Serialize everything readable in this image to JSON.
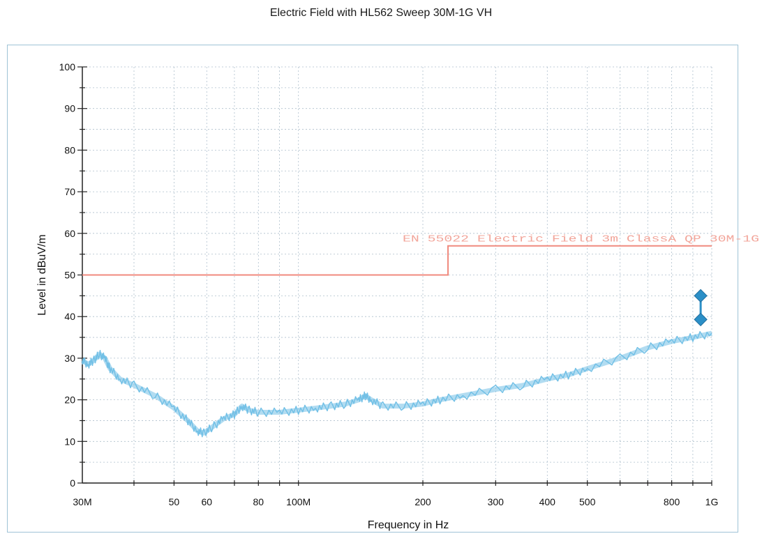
{
  "chart_data": {
    "type": "line",
    "title": "Electric Field with HL562 Sweep 30M-1G VH",
    "xlabel": "Frequency in Hz",
    "ylabel": "Level in dBuV/m",
    "x_scale": "log",
    "xlim": [
      30000000,
      1000000000
    ],
    "ylim": [
      0,
      100
    ],
    "grid": true,
    "x_ticks": [
      {
        "value": 30000000,
        "label": "30M"
      },
      {
        "value": 50000000,
        "label": "50"
      },
      {
        "value": 60000000,
        "label": "60"
      },
      {
        "value": 80000000,
        "label": "80"
      },
      {
        "value": 100000000,
        "label": "100M"
      },
      {
        "value": 200000000,
        "label": "200"
      },
      {
        "value": 300000000,
        "label": "300"
      },
      {
        "value": 400000000,
        "label": "400"
      },
      {
        "value": 500000000,
        "label": "500"
      },
      {
        "value": 800000000,
        "label": "800"
      },
      {
        "value": 1000000000,
        "label": "1G"
      }
    ],
    "y_ticks": [
      {
        "value": 0,
        "label": "0"
      },
      {
        "value": 10,
        "label": "10"
      },
      {
        "value": 20,
        "label": "20"
      },
      {
        "value": 30,
        "label": "30"
      },
      {
        "value": 40,
        "label": "40"
      },
      {
        "value": 50,
        "label": "50"
      },
      {
        "value": 60,
        "label": "60"
      },
      {
        "value": 70,
        "label": "70"
      },
      {
        "value": 80,
        "label": "80"
      },
      {
        "value": 90,
        "label": "90"
      },
      {
        "value": 100,
        "label": "100"
      }
    ],
    "series": [
      {
        "name": "EN 55022 Electric Field 3m ClassA QP 30M-1G",
        "kind": "limit",
        "color": "#f08a7e",
        "points": [
          [
            30000000,
            50
          ],
          [
            230000000,
            50
          ],
          [
            230000000,
            57
          ],
          [
            1000000000,
            57
          ]
        ]
      },
      {
        "kind": "measurement",
        "color": "#72c0e6",
        "points": [
          [
            30000000,
            29.5
          ],
          [
            31000000,
            28.5
          ],
          [
            32000000,
            29.5
          ],
          [
            33000000,
            31.0
          ],
          [
            34000000,
            30.0
          ],
          [
            35000000,
            27.5
          ],
          [
            37000000,
            25.0
          ],
          [
            40000000,
            23.5
          ],
          [
            45000000,
            21.0
          ],
          [
            50000000,
            18.0
          ],
          [
            54000000,
            15.0
          ],
          [
            57000000,
            12.5
          ],
          [
            59000000,
            12.0
          ],
          [
            62000000,
            13.5
          ],
          [
            66000000,
            15.5
          ],
          [
            70000000,
            16.5
          ],
          [
            73000000,
            18.5
          ],
          [
            76000000,
            17.5
          ],
          [
            80000000,
            17.0
          ],
          [
            90000000,
            17.0
          ],
          [
            100000000,
            17.5
          ],
          [
            110000000,
            18.0
          ],
          [
            120000000,
            18.5
          ],
          [
            130000000,
            19.0
          ],
          [
            140000000,
            20.0
          ],
          [
            145000000,
            21.0
          ],
          [
            150000000,
            20.0
          ],
          [
            160000000,
            18.5
          ],
          [
            180000000,
            18.5
          ],
          [
            200000000,
            19.0
          ],
          [
            220000000,
            20.0
          ],
          [
            250000000,
            21.0
          ],
          [
            300000000,
            22.5
          ],
          [
            350000000,
            23.5
          ],
          [
            400000000,
            25.0
          ],
          [
            450000000,
            26.0
          ],
          [
            500000000,
            27.5
          ],
          [
            600000000,
            30.0
          ],
          [
            700000000,
            32.5
          ],
          [
            800000000,
            34.0
          ],
          [
            900000000,
            35.0
          ],
          [
            1000000000,
            36.0
          ]
        ]
      }
    ],
    "markers": [
      {
        "frequency": 940000000,
        "level": 45.0,
        "color": "#2b8fc7"
      },
      {
        "frequency": 940000000,
        "level": 39.3,
        "color": "#2b8fc7"
      }
    ]
  }
}
